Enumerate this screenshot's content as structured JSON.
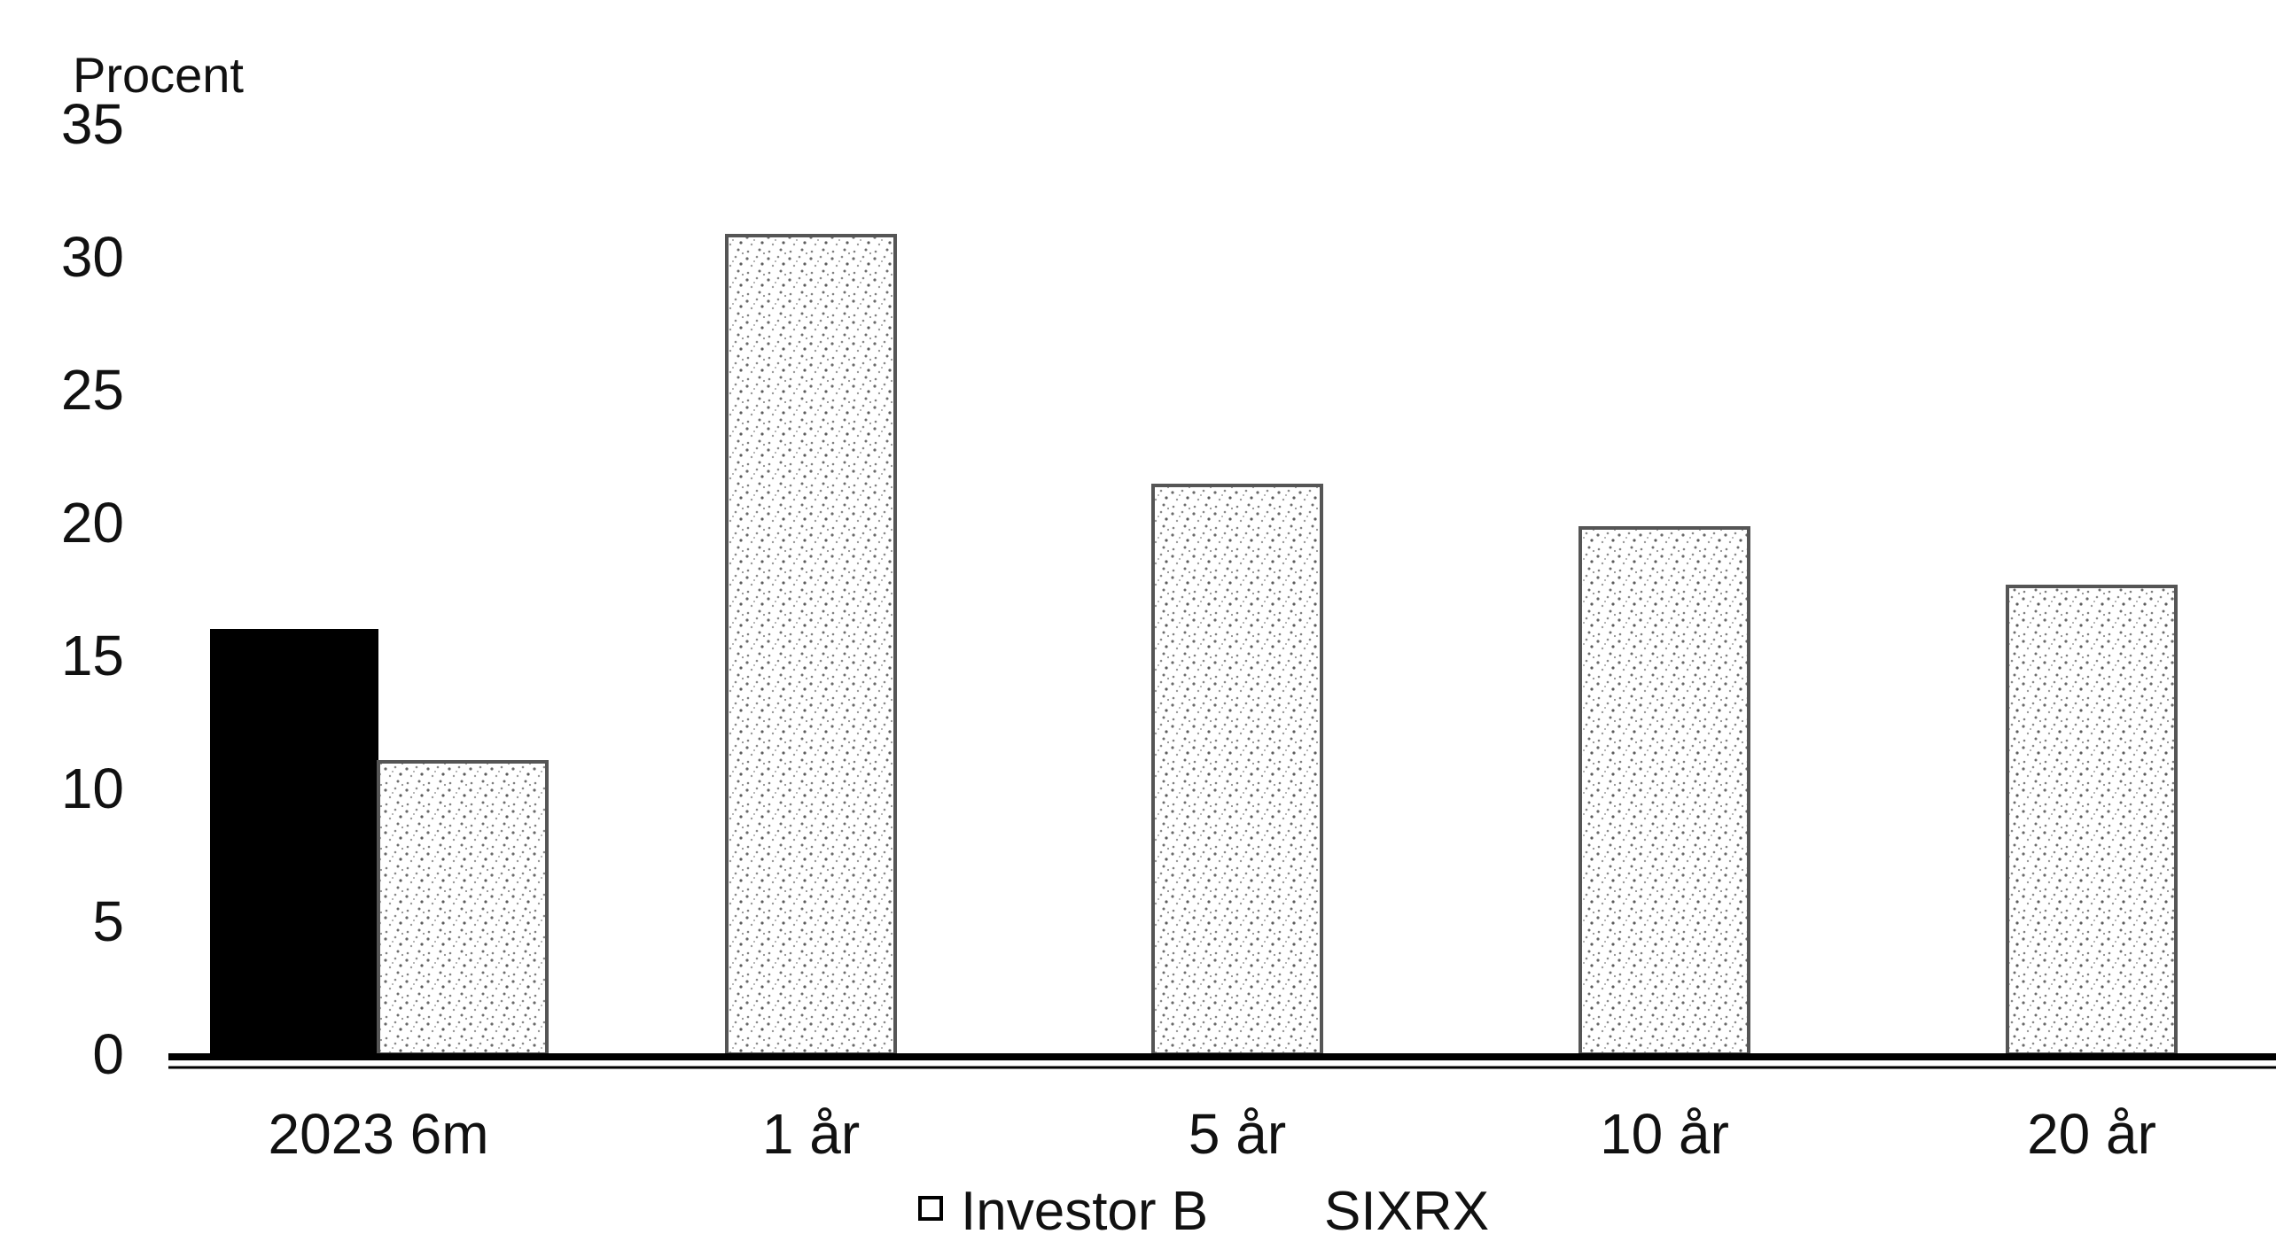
{
  "chart_data": {
    "type": "bar",
    "ylabel": "Procent",
    "ylim": [
      0,
      35
    ],
    "yticks": [
      0,
      5,
      10,
      15,
      20,
      25,
      30,
      35
    ],
    "categories": [
      "2023 6m",
      "1 år",
      "5 år",
      "10 år",
      "20 år"
    ],
    "series": [
      {
        "name": "Investor B",
        "values": [
          16,
          null,
          null,
          null,
          null
        ],
        "color": "#000000",
        "fill": "solid"
      },
      {
        "name": "SIXRX",
        "values": [
          11,
          30.8,
          21.4,
          19.8,
          17.6
        ],
        "color": "#d8d8d8",
        "fill": "stipple"
      }
    ],
    "legend": {
      "position": "bottom",
      "entries": [
        "Investor B",
        "SIXRX"
      ]
    },
    "grid": false
  }
}
